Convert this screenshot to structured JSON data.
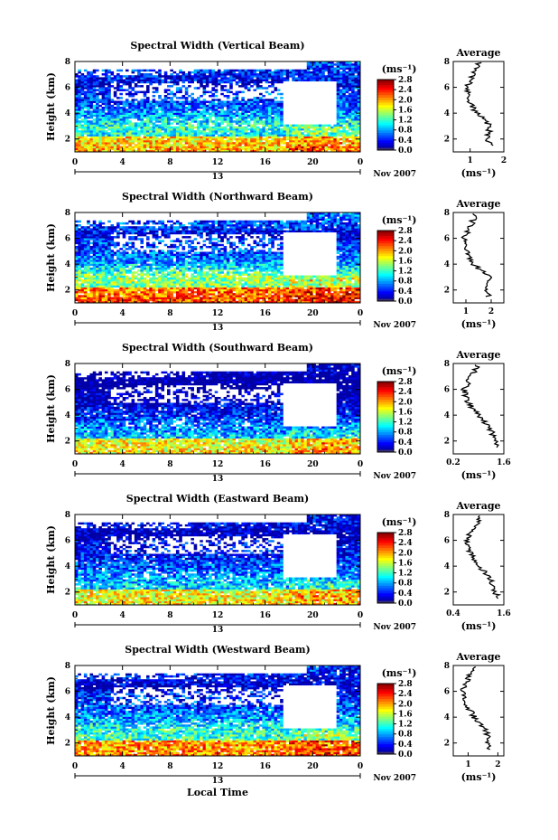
{
  "figure": {
    "x_axis_label": "Local Time",
    "date_label": "Nov 2007",
    "day_label": "13",
    "colorbar_unit": "(ms⁻¹)",
    "colorbar_ticks": [
      "0.0",
      "0.4",
      "0.8",
      "1.2",
      "1.6",
      "2.0",
      "2.4",
      "2.8"
    ],
    "avg_title": "Average",
    "avg_unit": "(ms⁻¹)"
  },
  "chart_data": [
    {
      "type": "heatmap",
      "title": "Spectral Width (Vertical Beam)",
      "xlabel": "",
      "ylabel": "Height (km)",
      "x_ticks": [
        "0",
        "4",
        "8",
        "12",
        "16",
        "20",
        "0"
      ],
      "y_ticks": [
        "2",
        "4",
        "6",
        "8"
      ],
      "xlim": [
        0,
        24
      ],
      "ylim": [
        1,
        8
      ],
      "color_range": [
        0.0,
        2.8
      ],
      "profile": {
        "title": "Average",
        "xlabel": "(ms⁻¹)",
        "x_ticks": [
          "1",
          "2"
        ],
        "xlim": [
          0.5,
          2.0
        ],
        "y_ticks": [
          "2",
          "4",
          "6",
          "8"
        ],
        "heights": [
          1,
          2,
          3,
          4,
          5,
          6,
          7,
          8
        ],
        "values": [
          1.7,
          1.5,
          1.6,
          1.2,
          0.95,
          0.9,
          1.1,
          1.3
        ]
      }
    },
    {
      "type": "heatmap",
      "title": "Spectral Width (Northward Beam)",
      "xlabel": "",
      "ylabel": "Height (km)",
      "x_ticks": [
        "0",
        "4",
        "8",
        "12",
        "16",
        "20",
        "0"
      ],
      "y_ticks": [
        "2",
        "4",
        "6",
        "8"
      ],
      "xlim": [
        0,
        24
      ],
      "ylim": [
        1,
        8
      ],
      "color_range": [
        0.0,
        2.8
      ],
      "profile": {
        "title": "Average",
        "xlabel": "(ms⁻¹)",
        "x_ticks": [
          "1",
          "2"
        ],
        "xlim": [
          0.5,
          2.5
        ],
        "y_ticks": [
          "2",
          "4",
          "6",
          "8"
        ],
        "heights": [
          1,
          2,
          3,
          4,
          5,
          6,
          7,
          8
        ],
        "values": [
          2.0,
          1.8,
          1.9,
          1.3,
          1.0,
          0.9,
          1.2,
          1.4
        ]
      }
    },
    {
      "type": "heatmap",
      "title": "Spectral Width (Southward Beam)",
      "xlabel": "",
      "ylabel": "Height (km)",
      "x_ticks": [
        "0",
        "4",
        "8",
        "12",
        "16",
        "20",
        "0"
      ],
      "y_ticks": [
        "2",
        "4",
        "6",
        "8"
      ],
      "xlim": [
        0,
        24
      ],
      "ylim": [
        1,
        8
      ],
      "color_range": [
        0.0,
        2.8
      ],
      "profile": {
        "title": "Average",
        "xlabel": "(ms⁻¹)",
        "x_ticks": [
          "0.2",
          "1.6"
        ],
        "xlim": [
          0.2,
          1.6
        ],
        "y_ticks": [
          "2",
          "4",
          "6",
          "8"
        ],
        "heights": [
          1,
          2,
          3,
          4,
          5,
          6,
          7,
          8
        ],
        "values": [
          1.5,
          1.4,
          1.2,
          0.9,
          0.6,
          0.5,
          0.7,
          0.9
        ]
      }
    },
    {
      "type": "heatmap",
      "title": "Spectral Width (Eastward Beam)",
      "xlabel": "",
      "ylabel": "Height (km)",
      "x_ticks": [
        "0",
        "4",
        "8",
        "12",
        "16",
        "20",
        "0"
      ],
      "y_ticks": [
        "2",
        "4",
        "6",
        "8"
      ],
      "xlim": [
        0,
        24
      ],
      "ylim": [
        1,
        8
      ],
      "color_range": [
        0.0,
        2.8
      ],
      "profile": {
        "title": "Average",
        "xlabel": "(ms⁻¹)",
        "x_ticks": [
          "0.4",
          "1.6"
        ],
        "xlim": [
          0.4,
          1.6
        ],
        "y_ticks": [
          "2",
          "4",
          "6",
          "8"
        ],
        "heights": [
          1,
          2,
          3,
          4,
          5,
          6,
          7,
          8
        ],
        "values": [
          1.5,
          1.4,
          1.3,
          1.0,
          0.8,
          0.7,
          0.9,
          1.1
        ]
      }
    },
    {
      "type": "heatmap",
      "title": "Spectral Width (Westward Beam)",
      "xlabel": "Local Time",
      "ylabel": "Height (km)",
      "x_ticks": [
        "0",
        "4",
        "8",
        "12",
        "16",
        "20",
        "0"
      ],
      "y_ticks": [
        "2",
        "4",
        "6",
        "8"
      ],
      "xlim": [
        0,
        24
      ],
      "ylim": [
        1,
        8
      ],
      "color_range": [
        0.0,
        2.8
      ],
      "profile": {
        "title": "Average",
        "xlabel": "(ms⁻¹)",
        "x_ticks": [
          "1",
          "2"
        ],
        "xlim": [
          0.5,
          2.2
        ],
        "y_ticks": [
          "2",
          "4",
          "6",
          "8"
        ],
        "heights": [
          1,
          2,
          3,
          4,
          5,
          6,
          7,
          8
        ],
        "values": [
          1.8,
          1.7,
          1.6,
          1.2,
          0.95,
          0.8,
          1.0,
          1.2
        ]
      }
    }
  ]
}
